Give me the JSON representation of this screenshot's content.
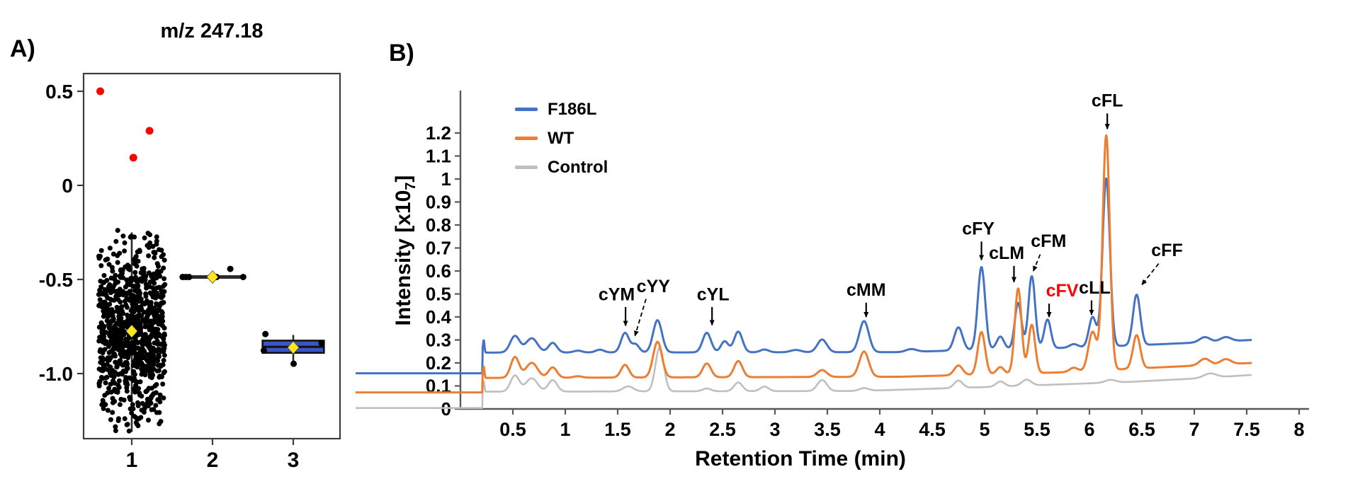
{
  "chart_data": [
    {
      "type": "scatter",
      "panel_label": "A)",
      "title": "m/z 247.18",
      "xlabel": "",
      "ylabel": "",
      "x_ticks": [
        "1",
        "2",
        "3"
      ],
      "x_tick_values": [
        1,
        2,
        3
      ],
      "y_ticks": [
        "0.5",
        "0",
        "-0.5",
        "-1.0"
      ],
      "y_tick_values": [
        0.5,
        0,
        -0.5,
        -1.0
      ],
      "ylim": [
        -1.35,
        0.6
      ],
      "xlim": [
        0.4,
        3.58
      ],
      "colors": {
        "point": "#000000",
        "outlier": "#ff0000",
        "mean_marker": "#ffe817",
        "box_fill": "#3b55c4",
        "box_edge": "#111111",
        "whisker": "#2b2b2b",
        "axis": "#3d3d3d"
      },
      "outliers_red": [
        [
          0.61,
          0.5
        ],
        [
          1.22,
          0.29
        ],
        [
          1.02,
          0.147
        ]
      ],
      "groups": [
        {
          "id": "1",
          "kind": "swarm",
          "n": 900,
          "seed": 7,
          "x_center": 1,
          "x_jitter": 0.41,
          "mean": -0.775,
          "sd": 0.235,
          "clip": [
            -1.33,
            -0.235
          ],
          "whisker": {
            "x": 1,
            "v0": -0.25,
            "v1": -1.31
          },
          "mean_marker": [
            1,
            -0.775
          ]
        },
        {
          "id": "2",
          "kind": "line",
          "line_v": -0.487,
          "x_span": [
            1.62,
            2.38
          ],
          "points": [
            [
              1.63,
              -0.487
            ],
            [
              1.67,
              -0.487
            ],
            [
              1.71,
              -0.487
            ],
            [
              2.05,
              -0.487
            ],
            [
              2.38,
              -0.487
            ],
            [
              2.22,
              -0.444
            ]
          ],
          "mean_marker": [
            2.0,
            -0.487
          ]
        },
        {
          "id": "3",
          "kind": "box",
          "box": {
            "x0": 2.62,
            "x1": 3.38,
            "top": -0.825,
            "bottom": -0.89,
            "median": -0.858
          },
          "whisker": {
            "x": 3.0,
            "v0": -0.795,
            "v1": -0.948
          },
          "points": [
            [
              2.655,
              -0.79
            ],
            [
              2.635,
              -0.878
            ],
            [
              3.005,
              -0.948
            ],
            [
              3.35,
              -0.838
            ]
          ],
          "mean_marker": [
            3.0,
            -0.862
          ]
        }
      ]
    },
    {
      "type": "line",
      "panel_label": "B)",
      "xlabel": "Retention Time (min)",
      "ylabel_main": "Intensity  [x10",
      "ylabel_sub": "7",
      "ylabel_close": "]",
      "xlim": [
        0,
        8
      ],
      "ylim": [
        0,
        1.25
      ],
      "x_ticks": [
        "0.5",
        "1",
        "1.5",
        "2",
        "2.5",
        "3",
        "3.5",
        "4",
        "4.5",
        "5",
        "5.5",
        "6",
        "6.5",
        "7",
        "7.5",
        "8"
      ],
      "x_tick_values": [
        0.5,
        1,
        1.5,
        2,
        2.5,
        3,
        3.5,
        4,
        4.5,
        5,
        5.5,
        6,
        6.5,
        7,
        7.5,
        8
      ],
      "y_ticks": [
        "0",
        "0.1",
        "0.2",
        "0.3",
        "0.4",
        "0.5",
        "0.6",
        "0.7",
        "0.8",
        "0.9",
        "1",
        "1.1",
        "1.2"
      ],
      "y_tick_values": [
        0,
        0.1,
        0.2,
        0.3,
        0.4,
        0.5,
        0.6,
        0.7,
        0.8,
        0.9,
        1.0,
        1.1,
        1.2
      ],
      "axis_color": "#595959",
      "legend": [
        {
          "label": "F186L",
          "color": "#4472c4"
        },
        {
          "label": "WT",
          "color": "#ed7d31"
        },
        {
          "label": "Control",
          "color": "#bfbfbf"
        }
      ],
      "series": [
        {
          "name": "Control",
          "color": "#bfbfbf",
          "width": 2.6,
          "pre_level": 0.004,
          "pre_start": -1.0,
          "step_t": 0.21,
          "spike_h": 0.045,
          "end_t": 7.55,
          "baseline": [
            [
              0.25,
              0.075
            ],
            [
              3.8,
              0.078
            ],
            [
              5.0,
              0.095
            ],
            [
              5.8,
              0.108
            ],
            [
              6.4,
              0.118
            ],
            [
              7.0,
              0.132
            ],
            [
              7.55,
              0.148
            ]
          ],
          "peaks": [
            [
              0.52,
              0.07,
              0.042
            ],
            [
              0.68,
              0.058,
              0.055
            ],
            [
              0.88,
              0.05,
              0.042
            ],
            [
              1.6,
              0.022,
              0.05
            ],
            [
              1.9,
              0.19,
              0.04
            ],
            [
              2.35,
              0.012,
              0.04
            ],
            [
              2.65,
              0.038,
              0.04
            ],
            [
              2.9,
              0.02,
              0.04
            ],
            [
              3.45,
              0.048,
              0.045
            ],
            [
              3.85,
              0.012,
              0.045
            ],
            [
              4.75,
              0.032,
              0.04
            ],
            [
              5.15,
              0.022,
              0.04
            ],
            [
              5.4,
              0.026,
              0.045
            ],
            [
              6.2,
              0.012,
              0.05
            ],
            [
              7.15,
              0.018,
              0.06
            ]
          ]
        },
        {
          "name": "F186L",
          "color": "#4472c4",
          "width": 3,
          "pre_level": 0.155,
          "pre_start": -1.0,
          "step_t": 0.21,
          "spike_h": 0.055,
          "end_t": 7.55,
          "baseline": [
            [
              0.25,
              0.245
            ],
            [
              4.2,
              0.247
            ],
            [
              5.0,
              0.258
            ],
            [
              5.8,
              0.266
            ],
            [
              6.4,
              0.276
            ],
            [
              7.0,
              0.288
            ],
            [
              7.55,
              0.3
            ]
          ],
          "peaks": [
            [
              0.52,
              0.072,
              0.045
            ],
            [
              0.68,
              0.062,
              0.055
            ],
            [
              0.88,
              0.042,
              0.04
            ],
            [
              1.12,
              0.008,
              0.04
            ],
            [
              1.33,
              0.012,
              0.04
            ],
            [
              1.57,
              0.085,
              0.038
            ],
            [
              1.67,
              0.035,
              0.035
            ],
            [
              1.88,
              0.14,
              0.042
            ],
            [
              2.35,
              0.085,
              0.04
            ],
            [
              2.52,
              0.048,
              0.035
            ],
            [
              2.65,
              0.09,
              0.04
            ],
            [
              2.9,
              0.012,
              0.04
            ],
            [
              3.2,
              0.01,
              0.05
            ],
            [
              3.45,
              0.055,
              0.045
            ],
            [
              3.85,
              0.135,
              0.045
            ],
            [
              4.3,
              0.012,
              0.05
            ],
            [
              4.75,
              0.1,
              0.04
            ],
            [
              4.97,
              0.36,
              0.035
            ],
            [
              5.15,
              0.055,
              0.035
            ],
            [
              5.32,
              0.2,
              0.032
            ],
            [
              5.45,
              0.315,
              0.032
            ],
            [
              5.6,
              0.125,
              0.032
            ],
            [
              5.85,
              0.015,
              0.04
            ],
            [
              6.03,
              0.13,
              0.035
            ],
            [
              6.16,
              0.73,
              0.035
            ],
            [
              6.45,
              0.22,
              0.035
            ],
            [
              7.1,
              0.022,
              0.05
            ],
            [
              7.3,
              0.018,
              0.05
            ]
          ]
        },
        {
          "name": "WT",
          "color": "#ed7d31",
          "width": 3,
          "pre_level": 0.072,
          "pre_start": -1.0,
          "step_t": 0.21,
          "spike_h": 0.05,
          "end_t": 7.55,
          "baseline": [
            [
              0.25,
              0.135
            ],
            [
              4.2,
              0.14
            ],
            [
              5.0,
              0.15
            ],
            [
              5.8,
              0.16
            ],
            [
              6.4,
              0.175
            ],
            [
              7.0,
              0.188
            ],
            [
              7.55,
              0.2
            ]
          ],
          "peaks": [
            [
              0.52,
              0.09,
              0.04
            ],
            [
              0.68,
              0.065,
              0.055
            ],
            [
              0.88,
              0.045,
              0.04
            ],
            [
              1.12,
              0.006,
              0.04
            ],
            [
              1.57,
              0.055,
              0.038
            ],
            [
              1.88,
              0.155,
              0.042
            ],
            [
              2.35,
              0.06,
              0.04
            ],
            [
              2.65,
              0.07,
              0.04
            ],
            [
              3.45,
              0.03,
              0.045
            ],
            [
              3.85,
              0.11,
              0.045
            ],
            [
              4.75,
              0.042,
              0.04
            ],
            [
              4.97,
              0.185,
              0.035
            ],
            [
              5.15,
              0.03,
              0.035
            ],
            [
              5.32,
              0.37,
              0.032
            ],
            [
              5.45,
              0.21,
              0.032
            ],
            [
              5.85,
              0.018,
              0.04
            ],
            [
              6.03,
              0.17,
              0.04
            ],
            [
              6.16,
              1.02,
              0.034
            ],
            [
              6.45,
              0.145,
              0.035
            ],
            [
              7.1,
              0.028,
              0.05
            ],
            [
              7.3,
              0.022,
              0.05
            ]
          ]
        }
      ],
      "annotations": [
        {
          "label": "cYM",
          "lx": 1.49,
          "lv": 0.472,
          "ax1": 1.575,
          "av1": 0.443,
          "ax2": 1.575,
          "av2": 0.362,
          "dashed": false,
          "color": "#000000"
        },
        {
          "label": "cYY",
          "lx": 1.84,
          "lv": 0.508,
          "ax1": 1.77,
          "av1": 0.478,
          "ax2": 1.665,
          "av2": 0.318,
          "dashed": true,
          "color": "#000000"
        },
        {
          "label": "cYL",
          "lx": 2.41,
          "lv": 0.472,
          "ax1": 2.4,
          "av1": 0.443,
          "ax2": 2.4,
          "av2": 0.365,
          "dashed": false,
          "color": "#000000"
        },
        {
          "label": "cMM",
          "lx": 3.87,
          "lv": 0.492,
          "ax1": 3.87,
          "av1": 0.462,
          "ax2": 3.87,
          "av2": 0.4,
          "dashed": false,
          "color": "#000000"
        },
        {
          "label": "cFY",
          "lx": 4.94,
          "lv": 0.758,
          "ax1": 4.97,
          "av1": 0.728,
          "ax2": 4.97,
          "av2": 0.648,
          "dashed": false,
          "color": "#000000"
        },
        {
          "label": "cLM",
          "lx": 5.21,
          "lv": 0.652,
          "ax1": 5.28,
          "av1": 0.622,
          "ax2": 5.28,
          "av2": 0.552,
          "dashed": false,
          "color": "#000000"
        },
        {
          "label": "cFM",
          "lx": 5.61,
          "lv": 0.705,
          "ax1": 5.53,
          "av1": 0.672,
          "ax2": 5.465,
          "av2": 0.6,
          "dashed": true,
          "color": "#000000"
        },
        {
          "label": "cFV",
          "lx": 5.74,
          "lv": 0.49,
          "ax1": 5.615,
          "av1": 0.458,
          "ax2": 5.615,
          "av2": 0.4,
          "dashed": false,
          "color": "#ff0000"
        },
        {
          "label": "cLL",
          "lx": 6.05,
          "lv": 0.502,
          "ax1": 6.02,
          "av1": 0.472,
          "ax2": 6.02,
          "av2": 0.41,
          "dashed": false,
          "color": "#000000"
        },
        {
          "label": "cFL",
          "lx": 6.17,
          "lv": 1.315,
          "ax1": 6.17,
          "av1": 1.285,
          "ax2": 6.17,
          "av2": 1.218,
          "dashed": false,
          "color": "#000000"
        },
        {
          "label": "cFF",
          "lx": 6.74,
          "lv": 0.665,
          "ax1": 6.66,
          "av1": 0.632,
          "ax2": 6.5,
          "av2": 0.54,
          "dashed": true,
          "color": "#000000"
        }
      ]
    }
  ]
}
